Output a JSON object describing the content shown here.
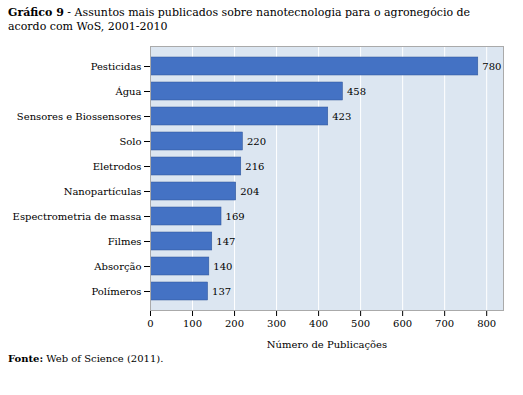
{
  "chart_data": {
    "type": "bar",
    "orientation": "horizontal",
    "title": "Gráfico 9 - Assuntos mais publicados sobre nanotecnologia para o agronegócio de\nacordo com WoS, 2001-2010",
    "caption": "Fonte: Web of Science (2011).",
    "categories": [
      "Polímeros",
      "Absorção",
      "Filmes",
      "Espectrometria de massa",
      "Nanopartículas",
      "Eletrodos",
      "Solo",
      "Sensores e Biossensores",
      "Água",
      "Pesticidas"
    ],
    "values": [
      137,
      140,
      147,
      169,
      204,
      216,
      220,
      423,
      458,
      780
    ],
    "color": "#4472C4",
    "xlabel": "Número de Publicações",
    "xlim": [
      0,
      840
    ],
    "xticks": [
      0,
      100,
      200,
      300,
      400,
      500,
      600,
      700,
      800
    ],
    "grid": true,
    "data_labels": true
  }
}
